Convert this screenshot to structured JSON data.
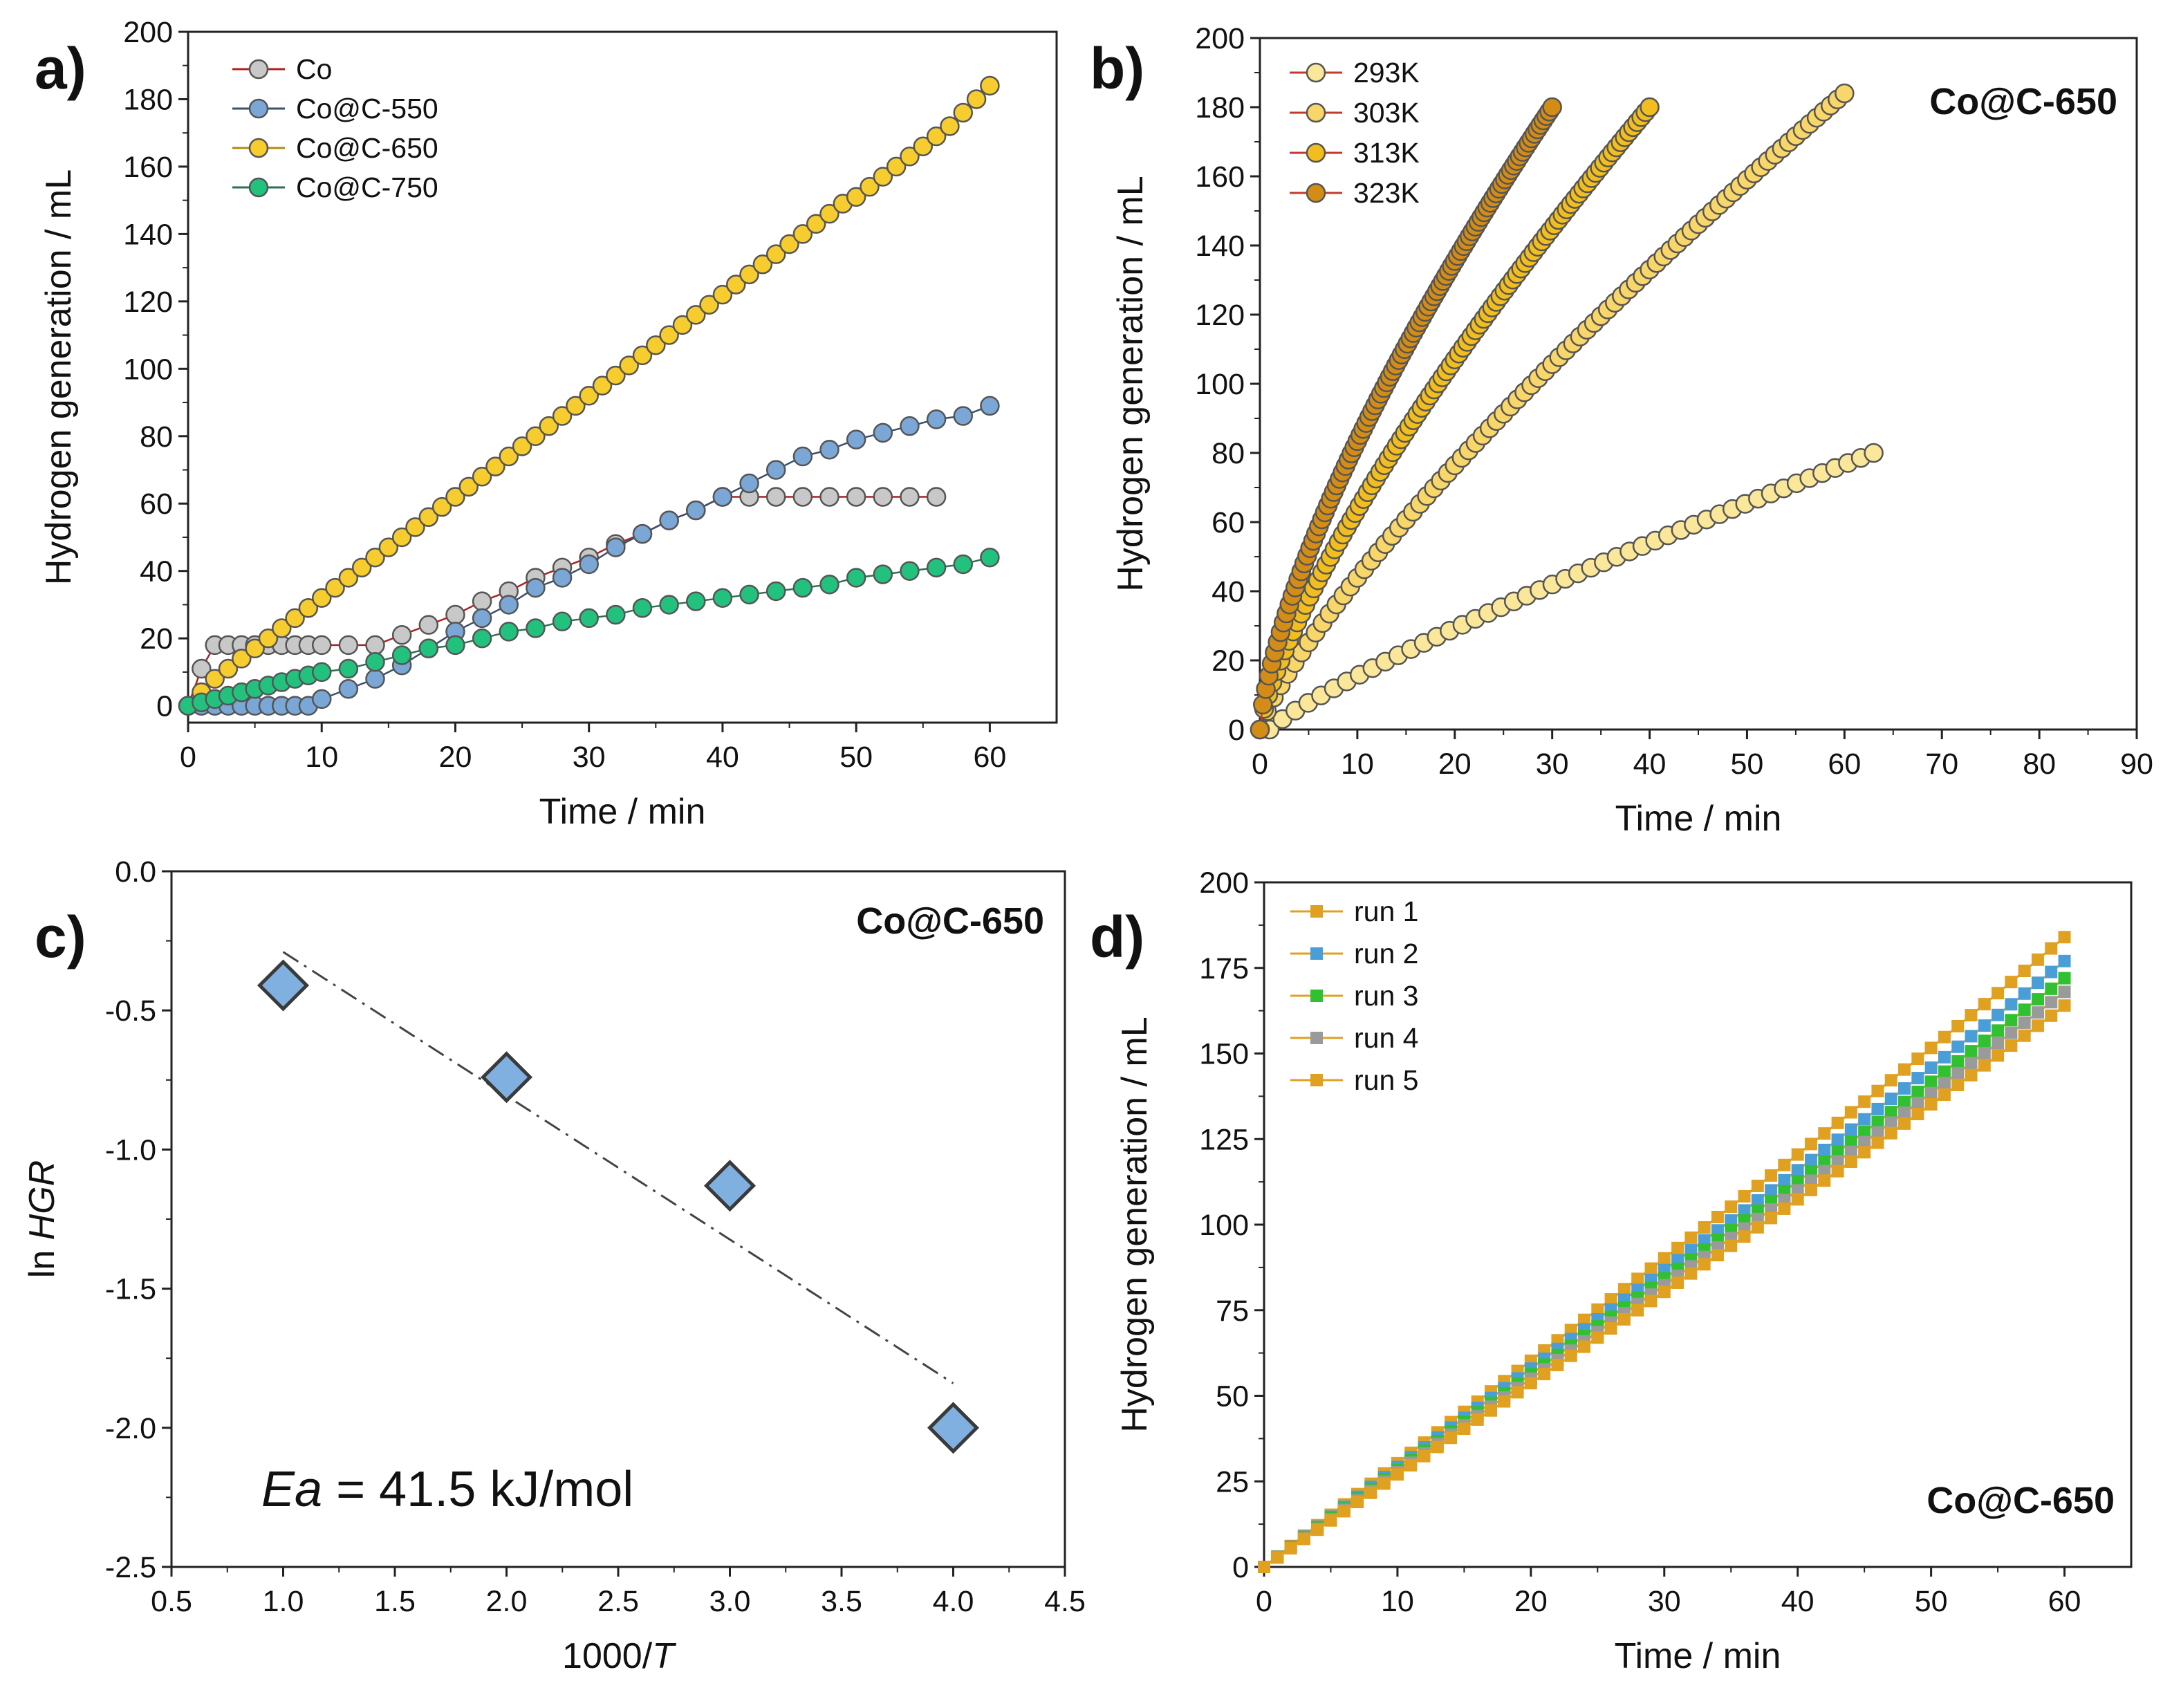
{
  "chart_data": [
    {
      "id": "a",
      "type": "scatter",
      "panel_label": "a)",
      "xlabel": "Time / min",
      "ylabel": "Hydrogen generation / mL",
      "xlim": [
        0,
        65
      ],
      "ylim": [
        -5,
        200
      ],
      "xticks": [
        0,
        10,
        20,
        30,
        40,
        50,
        60
      ],
      "yticks": [
        0,
        20,
        40,
        60,
        80,
        100,
        120,
        140,
        160,
        180,
        200
      ],
      "legend_position": "top-left",
      "series": [
        {
          "name": "Co",
          "color": "#c8c8c8",
          "line": "#b02020",
          "x": [
            0,
            1,
            2,
            3,
            4,
            5,
            6,
            7,
            8,
            9,
            10,
            12,
            14,
            16,
            18,
            20,
            22,
            24,
            26,
            28,
            30,
            32,
            34,
            36,
            38,
            40,
            42,
            44,
            46,
            48,
            50,
            52,
            54,
            56
          ],
          "y": [
            0,
            11,
            18,
            18,
            18,
            18,
            18,
            18,
            18,
            18,
            18,
            18,
            18,
            21,
            24,
            27,
            31,
            34,
            38,
            41,
            44,
            48,
            51,
            55,
            58,
            62,
            62,
            62,
            62,
            62,
            62,
            62,
            62,
            62
          ]
        },
        {
          "name": "Co@C-550",
          "color": "#7aa7d6",
          "line": "#3a4f6a",
          "x": [
            0,
            1,
            2,
            3,
            4,
            5,
            6,
            7,
            8,
            9,
            10,
            12,
            14,
            16,
            18,
            20,
            22,
            24,
            26,
            28,
            30,
            32,
            34,
            36,
            38,
            40,
            42,
            44,
            46,
            48,
            50,
            52,
            54,
            56,
            58,
            60
          ],
          "y": [
            0,
            0,
            0,
            0,
            0,
            0,
            0,
            0,
            0,
            0,
            2,
            5,
            8,
            12,
            17,
            22,
            26,
            30,
            35,
            38,
            42,
            47,
            51,
            55,
            58,
            62,
            66,
            70,
            74,
            76,
            79,
            81,
            83,
            85,
            86,
            89
          ]
        },
        {
          "name": "Co@C-650",
          "color": "#f7cc2e",
          "line": "#b08a10",
          "x": [
            0,
            1,
            2,
            3,
            4,
            5,
            6,
            7,
            8,
            9,
            10,
            11,
            12,
            13,
            14,
            15,
            16,
            17,
            18,
            19,
            20,
            21,
            22,
            23,
            24,
            25,
            26,
            27,
            28,
            29,
            30,
            31,
            32,
            33,
            34,
            35,
            36,
            37,
            38,
            39,
            40,
            41,
            42,
            43,
            44,
            45,
            46,
            47,
            48,
            49,
            50,
            51,
            52,
            53,
            54,
            55,
            56,
            57,
            58,
            59,
            60
          ],
          "y": [
            0,
            4,
            8,
            11,
            14,
            17,
            20,
            23,
            26,
            29,
            32,
            35,
            38,
            41,
            44,
            47,
            50,
            53,
            56,
            59,
            62,
            65,
            68,
            71,
            74,
            77,
            80,
            83,
            86,
            89,
            92,
            95,
            98,
            101,
            104,
            107,
            110,
            113,
            116,
            119,
            122,
            125,
            128,
            131,
            134,
            137,
            140,
            143,
            146,
            149,
            151,
            154,
            157,
            160,
            163,
            166,
            169,
            172,
            176,
            180,
            184
          ]
        },
        {
          "name": "Co@C-750",
          "color": "#22c27e",
          "line": "#2f6e52",
          "x": [
            0,
            1,
            2,
            3,
            4,
            5,
            6,
            7,
            8,
            9,
            10,
            12,
            14,
            16,
            18,
            20,
            22,
            24,
            26,
            28,
            30,
            32,
            34,
            36,
            38,
            40,
            42,
            44,
            46,
            48,
            50,
            52,
            54,
            56,
            58,
            60
          ],
          "y": [
            0,
            1,
            2,
            3,
            4,
            5,
            6,
            7,
            8,
            9,
            10,
            11,
            13,
            15,
            17,
            18,
            20,
            22,
            23,
            25,
            26,
            27,
            29,
            30,
            31,
            32,
            33,
            34,
            35,
            36,
            38,
            39,
            40,
            41,
            42,
            44
          ]
        }
      ]
    },
    {
      "id": "b",
      "type": "scatter",
      "panel_label": "b)",
      "annotation": "Co@C-650",
      "xlabel": "Time / min",
      "ylabel": "Hydrogen generation / mL",
      "xlim": [
        0,
        90
      ],
      "ylim": [
        0,
        200
      ],
      "xticks": [
        0,
        10,
        20,
        30,
        40,
        50,
        60,
        70,
        80,
        90
      ],
      "yticks": [
        0,
        20,
        40,
        60,
        80,
        100,
        120,
        140,
        160,
        180,
        200
      ],
      "legend_position": "top-left",
      "series": [
        {
          "name": "293K",
          "color": "#fbe79a",
          "line": "#c43a2a",
          "curve": {
            "t_end": 63,
            "y_end": 80,
            "power": 0.85,
            "n": 48,
            "t_start": 1
          }
        },
        {
          "name": "303K",
          "color": "#f9d66a",
          "line": "#c43a2a",
          "curve": {
            "t_end": 60,
            "y_end": 184,
            "power": 0.8,
            "n": 85,
            "t_start": 0
          }
        },
        {
          "name": "313K",
          "color": "#f2be1f",
          "line": "#c43a2a",
          "curve": {
            "t_end": 40,
            "y_end": 180,
            "power": 0.75,
            "n": 95,
            "t_start": 0
          }
        },
        {
          "name": "323K",
          "color": "#d38d16",
          "line": "#c43a2a",
          "curve": {
            "t_end": 30,
            "y_end": 180,
            "power": 0.7,
            "n": 100,
            "t_start": 0
          }
        }
      ]
    },
    {
      "id": "c",
      "type": "scatter",
      "panel_label": "c)",
      "annotation": "Co@C-650",
      "xlabel_prefix": "1000/",
      "xlabel_var": "T",
      "ylabel_prefix": "ln ",
      "ylabel_var": "HGR",
      "xlim": [
        0.5,
        4.5
      ],
      "ylim": [
        -2.5,
        0.0
      ],
      "xticks": [
        0.5,
        1.0,
        1.5,
        2.0,
        2.5,
        3.0,
        3.5,
        4.0,
        4.5
      ],
      "yticks": [
        0.0,
        -0.5,
        -1.0,
        -1.5,
        -2.0,
        -2.5
      ],
      "series": [
        {
          "name": "ln HGR",
          "color": "#7fb0df",
          "edge": "#3a3a3a",
          "x": [
            1.0,
            2.0,
            3.0,
            4.0
          ],
          "y": [
            -0.41,
            -0.74,
            -1.13,
            -2.0
          ]
        }
      ],
      "fit": {
        "x": [
          1.0,
          4.0
        ],
        "y": [
          -0.29,
          -1.84
        ],
        "style": "dash-dot"
      },
      "ea_var": "Ea",
      "ea_text": " = 41.5 kJ/mol"
    },
    {
      "id": "d",
      "type": "line",
      "panel_label": "d)",
      "annotation": "Co@C-650",
      "xlabel": "Time / min",
      "ylabel": "Hydrogen generation / mL",
      "xlim": [
        0,
        65
      ],
      "ylim": [
        0,
        200
      ],
      "xticks": [
        0,
        10,
        20,
        30,
        40,
        50,
        60
      ],
      "yticks": [
        0,
        25,
        50,
        75,
        100,
        125,
        150,
        175,
        200
      ],
      "legend_position": "top-left",
      "series": [
        {
          "name": "run 1",
          "color": "#e0a020",
          "line": "#e0a020",
          "end": 184
        },
        {
          "name": "run 2",
          "color": "#4a9ed8",
          "line": "#e0a020",
          "end": 177
        },
        {
          "name": "run 3",
          "color": "#30c030",
          "line": "#e0a020",
          "end": 172
        },
        {
          "name": "run 4",
          "color": "#9a9a9a",
          "line": "#e0a020",
          "end": 168
        },
        {
          "name": "run 5",
          "color": "#e0a020",
          "line": "#e0a020",
          "end": 164
        }
      ]
    }
  ]
}
